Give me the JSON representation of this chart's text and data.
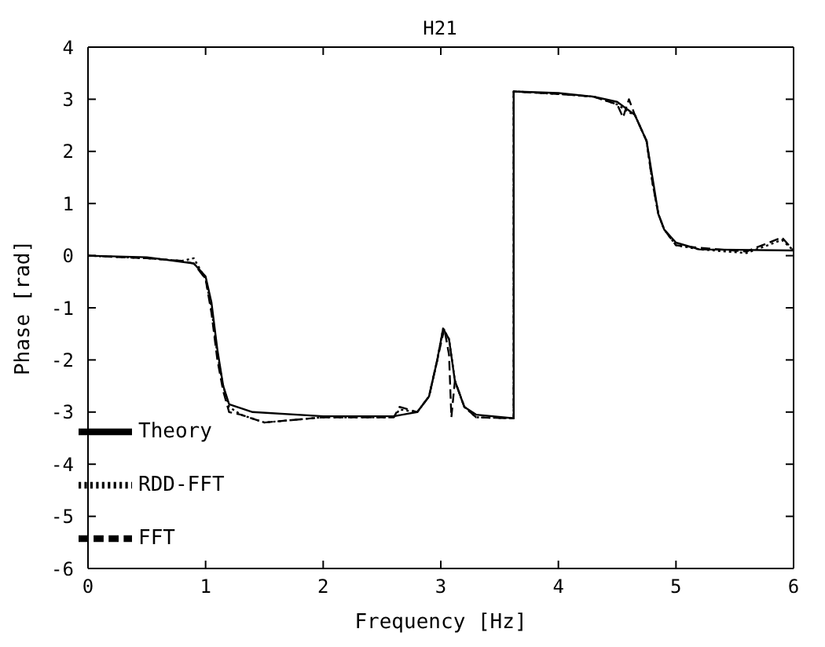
{
  "chart_data": {
    "type": "line",
    "title": "H21",
    "xlabel": "Frequency [Hz]",
    "ylabel": "Phase [rad]",
    "xlim": [
      0,
      6
    ],
    "ylim": [
      -6,
      4
    ],
    "xticks": [
      0,
      1,
      2,
      3,
      4,
      5,
      6
    ],
    "yticks": [
      -6,
      -5,
      -4,
      -3,
      -2,
      -1,
      0,
      1,
      2,
      3,
      4
    ],
    "grid": false,
    "legend": "bottom left",
    "marker": "none",
    "series": [
      {
        "name": "Theory",
        "color": "#000000",
        "line_style": "solid",
        "x": [
          0,
          0.5,
          0.9,
          1.0,
          1.05,
          1.1,
          1.15,
          1.2,
          1.4,
          2,
          2.6,
          2.8,
          2.9,
          2.97,
          3.02,
          3.07,
          3.12,
          3.2,
          3.3,
          3.62,
          3.62,
          4.0,
          4.3,
          4.5,
          4.65,
          4.75,
          4.8,
          4.85,
          4.9,
          5.0,
          5.2,
          6
        ],
        "values": [
          0,
          -0.03,
          -0.15,
          -0.4,
          -0.9,
          -1.8,
          -2.5,
          -2.85,
          -3.0,
          -3.08,
          -3.08,
          -3.0,
          -2.7,
          -2.0,
          -1.4,
          -1.6,
          -2.4,
          -2.9,
          -3.05,
          -3.12,
          3.15,
          3.12,
          3.05,
          2.95,
          2.7,
          2.2,
          1.5,
          0.8,
          0.5,
          0.25,
          0.12,
          0.1
        ]
      },
      {
        "name": "RDD-FFT",
        "color": "#000000",
        "line_style": "dotted",
        "x": [
          0,
          0.5,
          0.8,
          0.9,
          1.0,
          1.05,
          1.1,
          1.15,
          1.2,
          1.3,
          1.5,
          2,
          2.6,
          2.65,
          2.8,
          2.9,
          2.97,
          3.02,
          3.07,
          3.12,
          3.2,
          3.3,
          3.62,
          3.62,
          4.0,
          4.3,
          4.5,
          4.6,
          4.65,
          4.75,
          4.8,
          4.85,
          4.9,
          5.0,
          5.2,
          5.6,
          5.9,
          6
        ],
        "values": [
          0,
          -0.05,
          -0.1,
          -0.05,
          -0.45,
          -1.0,
          -1.9,
          -2.5,
          -2.9,
          -3.05,
          -3.2,
          -3.1,
          -3.1,
          -2.95,
          -3.0,
          -2.7,
          -2.0,
          -1.4,
          -1.6,
          -2.4,
          -2.9,
          -3.1,
          -3.12,
          3.15,
          3.1,
          3.05,
          2.9,
          2.75,
          2.7,
          2.2,
          1.4,
          0.8,
          0.5,
          0.2,
          0.12,
          0.05,
          0.3,
          0.1
        ]
      },
      {
        "name": "FFT",
        "color": "#000000",
        "line_style": "dashed",
        "x": [
          0,
          0.5,
          0.8,
          0.9,
          1.0,
          1.05,
          1.1,
          1.15,
          1.2,
          1.3,
          1.5,
          2,
          2.6,
          2.65,
          2.8,
          2.9,
          2.97,
          3.03,
          3.07,
          3.09,
          3.12,
          3.2,
          3.3,
          3.62,
          3.62,
          4.0,
          4.3,
          4.5,
          4.55,
          4.6,
          4.65,
          4.75,
          4.8,
          4.85,
          4.9,
          5.0,
          5.2,
          5.6,
          5.9,
          6
        ],
        "values": [
          0,
          -0.05,
          -0.1,
          -0.15,
          -0.45,
          -1.1,
          -2.0,
          -2.6,
          -3.0,
          -3.05,
          -3.2,
          -3.1,
          -3.1,
          -2.9,
          -3.0,
          -2.7,
          -2.0,
          -1.4,
          -1.9,
          -3.1,
          -2.4,
          -2.9,
          -3.1,
          -3.12,
          3.15,
          3.1,
          3.05,
          2.9,
          2.65,
          3.0,
          2.7,
          2.2,
          1.4,
          0.8,
          0.5,
          0.2,
          0.15,
          0.08,
          0.35,
          0.1
        ]
      }
    ]
  }
}
